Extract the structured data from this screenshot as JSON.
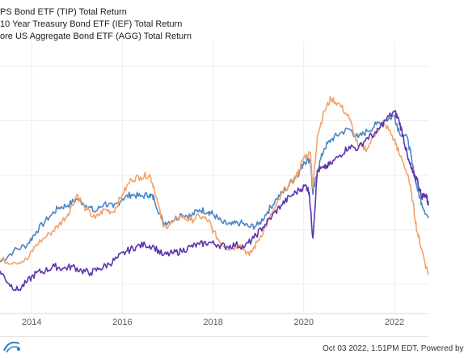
{
  "legend": [
    {
      "label": "PS Bond ETF (TIP) Total Return",
      "color": "#4a86c6"
    },
    {
      "label": "10 Year Treasury Bond ETF (IEF) Total Return",
      "color": "#f2a36b"
    },
    {
      "label": "ore US Aggregate Bond ETF (AGG) Total Return",
      "color": "#5b34b0"
    }
  ],
  "footer": {
    "text": "Oct 03 2022, 1:51PM EDT.  Powered by"
  },
  "chart_data": {
    "type": "line",
    "title": "",
    "xlabel": "",
    "ylabel": "",
    "x_ticks": [
      "2014",
      "2016",
      "2018",
      "2020",
      "2022"
    ],
    "xlim": [
      2013.3,
      2022.75
    ],
    "ylim": [
      0,
      100
    ],
    "grid": true,
    "legend_position": "top-left",
    "series": [
      {
        "name": "PS Bond ETF (TIP) Total Return",
        "color": "#4a86c6",
        "points": [
          [
            2013.3,
            14
          ],
          [
            2013.6,
            19
          ],
          [
            2013.9,
            22
          ],
          [
            2014.1,
            28
          ],
          [
            2014.4,
            35
          ],
          [
            2014.6,
            39
          ],
          [
            2014.8,
            40
          ],
          [
            2015.0,
            43
          ],
          [
            2015.2,
            40
          ],
          [
            2015.4,
            37
          ],
          [
            2015.6,
            41
          ],
          [
            2015.8,
            39
          ],
          [
            2016.0,
            43
          ],
          [
            2016.2,
            45
          ],
          [
            2016.4,
            44
          ],
          [
            2016.6,
            45
          ],
          [
            2016.7,
            43
          ],
          [
            2016.9,
            32
          ],
          [
            2017.1,
            33
          ],
          [
            2017.3,
            36
          ],
          [
            2017.5,
            35
          ],
          [
            2017.7,
            38
          ],
          [
            2017.9,
            37
          ],
          [
            2018.0,
            36
          ],
          [
            2018.2,
            32
          ],
          [
            2018.4,
            31
          ],
          [
            2018.6,
            32
          ],
          [
            2018.8,
            30
          ],
          [
            2019.0,
            31
          ],
          [
            2019.2,
            37
          ],
          [
            2019.4,
            43
          ],
          [
            2019.6,
            47
          ],
          [
            2019.8,
            53
          ],
          [
            2019.9,
            55
          ],
          [
            2020.0,
            60
          ],
          [
            2020.15,
            61
          ],
          [
            2020.2,
            45
          ],
          [
            2020.3,
            56
          ],
          [
            2020.45,
            66
          ],
          [
            2020.6,
            70
          ],
          [
            2020.8,
            73
          ],
          [
            2021.0,
            75
          ],
          [
            2021.2,
            71
          ],
          [
            2021.4,
            74
          ],
          [
            2021.6,
            77
          ],
          [
            2021.8,
            79
          ],
          [
            2022.0,
            81
          ],
          [
            2022.1,
            74
          ],
          [
            2022.3,
            70
          ],
          [
            2022.4,
            58
          ],
          [
            2022.5,
            48
          ],
          [
            2022.6,
            41
          ],
          [
            2022.75,
            34
          ]
        ]
      },
      {
        "name": "10 Year Treasury Bond ETF (IEF) Total Return",
        "color": "#f2a36b",
        "points": [
          [
            2013.3,
            15
          ],
          [
            2013.6,
            14
          ],
          [
            2013.9,
            15
          ],
          [
            2014.1,
            22
          ],
          [
            2014.4,
            27
          ],
          [
            2014.6,
            31
          ],
          [
            2014.8,
            36
          ],
          [
            2015.0,
            45
          ],
          [
            2015.2,
            38
          ],
          [
            2015.4,
            34
          ],
          [
            2015.6,
            38
          ],
          [
            2015.8,
            37
          ],
          [
            2016.0,
            45
          ],
          [
            2016.2,
            52
          ],
          [
            2016.4,
            53
          ],
          [
            2016.6,
            54
          ],
          [
            2016.7,
            48
          ],
          [
            2016.9,
            30
          ],
          [
            2017.1,
            32
          ],
          [
            2017.3,
            35
          ],
          [
            2017.5,
            33
          ],
          [
            2017.7,
            35
          ],
          [
            2017.9,
            33
          ],
          [
            2018.0,
            28
          ],
          [
            2018.2,
            22
          ],
          [
            2018.4,
            20
          ],
          [
            2018.6,
            22
          ],
          [
            2018.8,
            17
          ],
          [
            2019.0,
            24
          ],
          [
            2019.2,
            32
          ],
          [
            2019.4,
            40
          ],
          [
            2019.6,
            48
          ],
          [
            2019.8,
            52
          ],
          [
            2019.9,
            56
          ],
          [
            2020.0,
            62
          ],
          [
            2020.15,
            64
          ],
          [
            2020.2,
            48
          ],
          [
            2020.3,
            72
          ],
          [
            2020.45,
            83
          ],
          [
            2020.6,
            89
          ],
          [
            2020.8,
            86
          ],
          [
            2021.0,
            80
          ],
          [
            2021.2,
            67
          ],
          [
            2021.4,
            66
          ],
          [
            2021.6,
            74
          ],
          [
            2021.8,
            77
          ],
          [
            2022.0,
            70
          ],
          [
            2022.1,
            64
          ],
          [
            2022.3,
            54
          ],
          [
            2022.4,
            42
          ],
          [
            2022.5,
            28
          ],
          [
            2022.6,
            20
          ],
          [
            2022.75,
            8
          ]
        ]
      },
      {
        "name": "ore US Aggregate Bond ETF (AGG) Total Return",
        "color": "#5b34b0",
        "points": [
          [
            2013.3,
            10
          ],
          [
            2013.5,
            4
          ],
          [
            2013.7,
            1
          ],
          [
            2013.9,
            5
          ],
          [
            2014.1,
            9
          ],
          [
            2014.3,
            10
          ],
          [
            2014.5,
            12
          ],
          [
            2014.7,
            11
          ],
          [
            2014.9,
            12
          ],
          [
            2015.1,
            10
          ],
          [
            2015.3,
            9
          ],
          [
            2015.5,
            11
          ],
          [
            2015.7,
            13
          ],
          [
            2015.9,
            16
          ],
          [
            2016.1,
            19
          ],
          [
            2016.3,
            21
          ],
          [
            2016.5,
            22
          ],
          [
            2016.7,
            21
          ],
          [
            2016.9,
            17
          ],
          [
            2017.1,
            18
          ],
          [
            2017.3,
            19
          ],
          [
            2017.5,
            21
          ],
          [
            2017.7,
            22
          ],
          [
            2017.9,
            23
          ],
          [
            2018.1,
            22
          ],
          [
            2018.3,
            21
          ],
          [
            2018.5,
            22
          ],
          [
            2018.7,
            21
          ],
          [
            2018.9,
            25
          ],
          [
            2019.1,
            30
          ],
          [
            2019.3,
            35
          ],
          [
            2019.5,
            40
          ],
          [
            2019.7,
            44
          ],
          [
            2019.9,
            47
          ],
          [
            2020.05,
            49
          ],
          [
            2020.12,
            46
          ],
          [
            2020.2,
            25
          ],
          [
            2020.3,
            56
          ],
          [
            2020.45,
            57
          ],
          [
            2020.6,
            59
          ],
          [
            2020.8,
            63
          ],
          [
            2021.0,
            67
          ],
          [
            2021.2,
            66
          ],
          [
            2021.4,
            71
          ],
          [
            2021.6,
            73
          ],
          [
            2021.8,
            79
          ],
          [
            2022.0,
            83
          ],
          [
            2022.1,
            79
          ],
          [
            2022.2,
            71
          ],
          [
            2022.3,
            61
          ],
          [
            2022.4,
            55
          ],
          [
            2022.5,
            52
          ],
          [
            2022.6,
            44
          ],
          [
            2022.7,
            45
          ],
          [
            2022.75,
            40
          ]
        ]
      }
    ]
  }
}
